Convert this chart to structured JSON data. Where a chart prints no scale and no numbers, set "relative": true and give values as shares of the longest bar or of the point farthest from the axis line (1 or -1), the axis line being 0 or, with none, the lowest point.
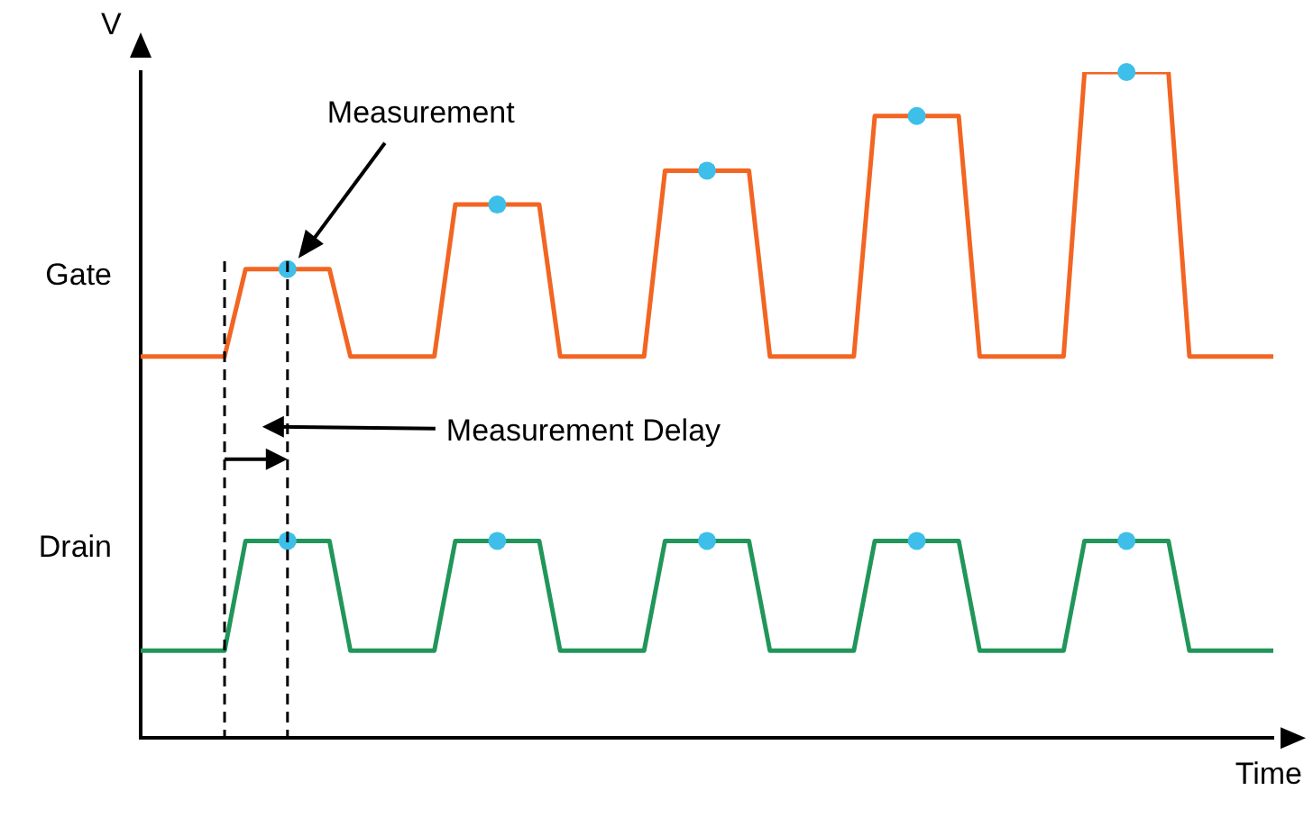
{
  "chart_data": {
    "type": "line",
    "relative": true,
    "xlabel": "Time",
    "ylabel": "V",
    "legend": false,
    "grid": false,
    "marker": "none",
    "categories": [
      null,
      null,
      null,
      null,
      null,
      null,
      null,
      null,
      null,
      null,
      null,
      null,
      null,
      null,
      null,
      null,
      null,
      null,
      null,
      null,
      null,
      null,
      null,
      null,
      null,
      null,
      null,
      null,
      null,
      null,
      null,
      null,
      null,
      null,
      null,
      null,
      null,
      null,
      null,
      null,
      null,
      null,
      null,
      null,
      null,
      null,
      null,
      null,
      null,
      null,
      null,
      null,
      null,
      null,
      null
    ],
    "series": [
      {
        "name": "Gate",
        "color": "#f26522",
        "values": [
          0.573,
          0.573,
          0.573,
          0.573,
          0.573,
          0.704,
          0.704,
          0.704,
          0.704,
          0.704,
          0.573,
          0.573,
          0.573,
          0.573,
          0.573,
          0.801,
          0.801,
          0.801,
          0.801,
          0.801,
          0.573,
          0.573,
          0.573,
          0.573,
          0.573,
          0.852,
          0.852,
          0.852,
          0.852,
          0.852,
          0.573,
          0.573,
          0.573,
          0.573,
          0.573,
          0.934,
          0.934,
          0.934,
          0.934,
          0.934,
          0.573,
          0.573,
          0.573,
          0.573,
          0.573,
          1,
          1,
          1,
          1,
          1,
          0.573,
          0.573,
          0.573,
          0.573,
          0.573
        ]
      },
      {
        "name": "Drain",
        "color": "#21965a",
        "values": [
          0.131,
          0.131,
          0.131,
          0.131,
          0.131,
          0.296,
          0.296,
          0.296,
          0.296,
          0.296,
          0.131,
          0.131,
          0.131,
          0.131,
          0.131,
          0.296,
          0.296,
          0.296,
          0.296,
          0.296,
          0.131,
          0.131,
          0.131,
          0.131,
          0.131,
          0.296,
          0.296,
          0.296,
          0.296,
          0.296,
          0.131,
          0.131,
          0.131,
          0.131,
          0.131,
          0.296,
          0.296,
          0.296,
          0.296,
          0.296,
          0.131,
          0.131,
          0.131,
          0.131,
          0.131,
          0.296,
          0.296,
          0.296,
          0.296,
          0.296,
          0.131,
          0.131,
          0.131,
          0.131,
          0.131
        ]
      }
    ],
    "annotations": [
      "Measurement",
      "Measurement Delay"
    ]
  }
}
